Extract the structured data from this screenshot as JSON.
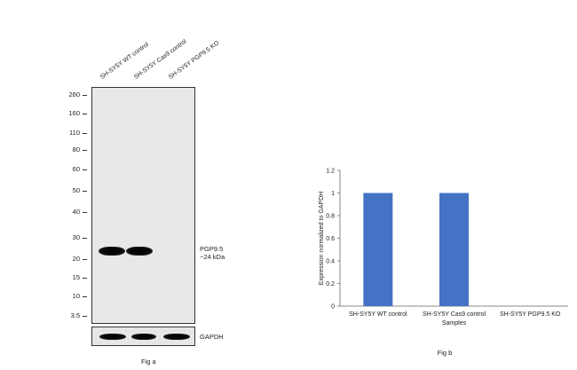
{
  "western_blot": {
    "lanes": [
      "SH-SY5Y WT control",
      "SH-SY5Y Cas9 control",
      "SH-SY5Y PGP9.5 KO"
    ],
    "mw_markers": [
      "260",
      "160",
      "110",
      "80",
      "60",
      "50",
      "40",
      "30",
      "20",
      "15",
      "10",
      "3.5"
    ],
    "target_label_line1": "PGP9.5",
    "target_label_line2": "~24 kDa",
    "loading_control_label": "GAPDH",
    "caption": "Fig a"
  },
  "chart_data": {
    "type": "bar",
    "categories": [
      "SH-SY5Y WT control",
      "SH-SY5Y Cas9 control",
      "SH-SY5Y PGP9.5 KO"
    ],
    "values": [
      1,
      1,
      0
    ],
    "ylabel": "Expression normalized to GAPDH",
    "xlabel": "Samples",
    "ylim": [
      0,
      1.2
    ],
    "yticks": [
      "0",
      "0.2",
      "0.4",
      "0.6",
      "0.8",
      "1",
      "1.2"
    ],
    "bar_color": "#4472c4",
    "caption": "Fig b"
  }
}
